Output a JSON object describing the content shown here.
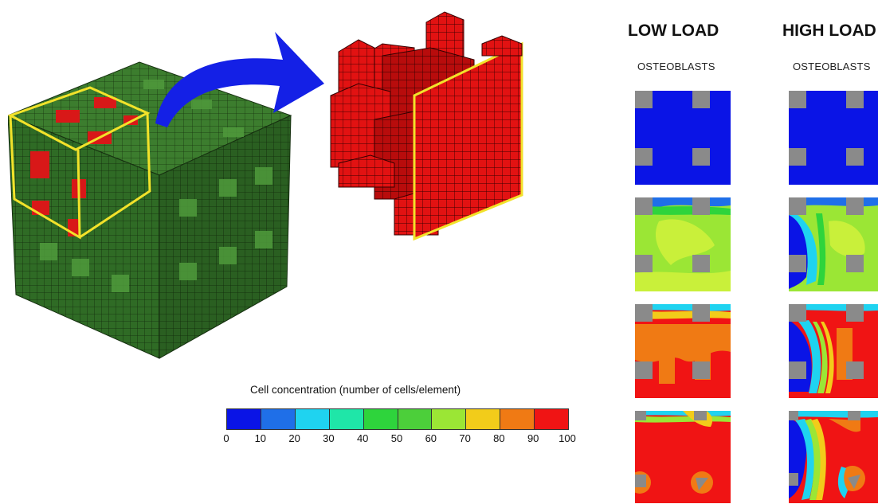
{
  "colorbar": {
    "title": "Cell concentration (number of cells/element)",
    "ticks": [
      "0",
      "10",
      "20",
      "30",
      "40",
      "50",
      "60",
      "70",
      "80",
      "90",
      "100"
    ],
    "colors": [
      "#0a14e6",
      "#1f6fe8",
      "#1fd3f0",
      "#1fe6a8",
      "#2ed43c",
      "#4ccf3a",
      "#9be635",
      "#f2cc1a",
      "#f07a14",
      "#f01414"
    ]
  },
  "columns": [
    {
      "heading": "LOW LOAD",
      "subheading": "OSTEOBLASTS"
    },
    {
      "heading": "HIGH LOAD",
      "subheading": "OSTEOBLASTS"
    }
  ],
  "colors": {
    "scaffold_green": "#2f6b25",
    "scaffold_red": "#e01010",
    "highlight_yellow": "#f2e22a",
    "arrow_blue": "#1420e6",
    "pore_gray": "#8a8a8a"
  }
}
